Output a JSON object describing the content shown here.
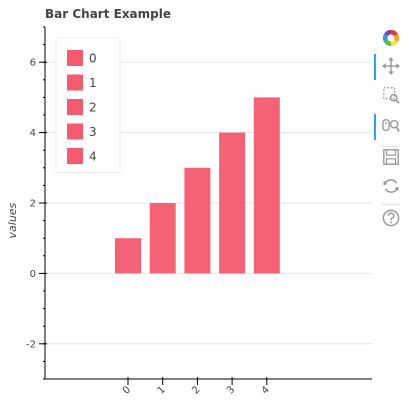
{
  "chart_data": {
    "type": "bar",
    "title": "Bar Chart Example",
    "xlabel": "",
    "ylabel": "values",
    "categories": [
      "0",
      "1",
      "2",
      "3",
      "4"
    ],
    "values": [
      1,
      2,
      3,
      4,
      5
    ],
    "legend": [
      "0",
      "1",
      "2",
      "3",
      "4"
    ],
    "legend_position": "top-left",
    "bar_color": "#f55a6e",
    "yticks": [
      6,
      4,
      2,
      0,
      -2
    ],
    "ylim": [
      -3,
      7
    ],
    "grid": true
  },
  "toolbar": {
    "tools": [
      {
        "name": "bokeh-logo-icon"
      },
      {
        "name": "pan-icon",
        "active": true
      },
      {
        "name": "box-zoom-icon"
      },
      {
        "name": "wheel-zoom-icon",
        "active": true
      },
      {
        "name": "save-icon"
      },
      {
        "name": "reset-icon"
      },
      {
        "name": "help-icon"
      }
    ]
  }
}
